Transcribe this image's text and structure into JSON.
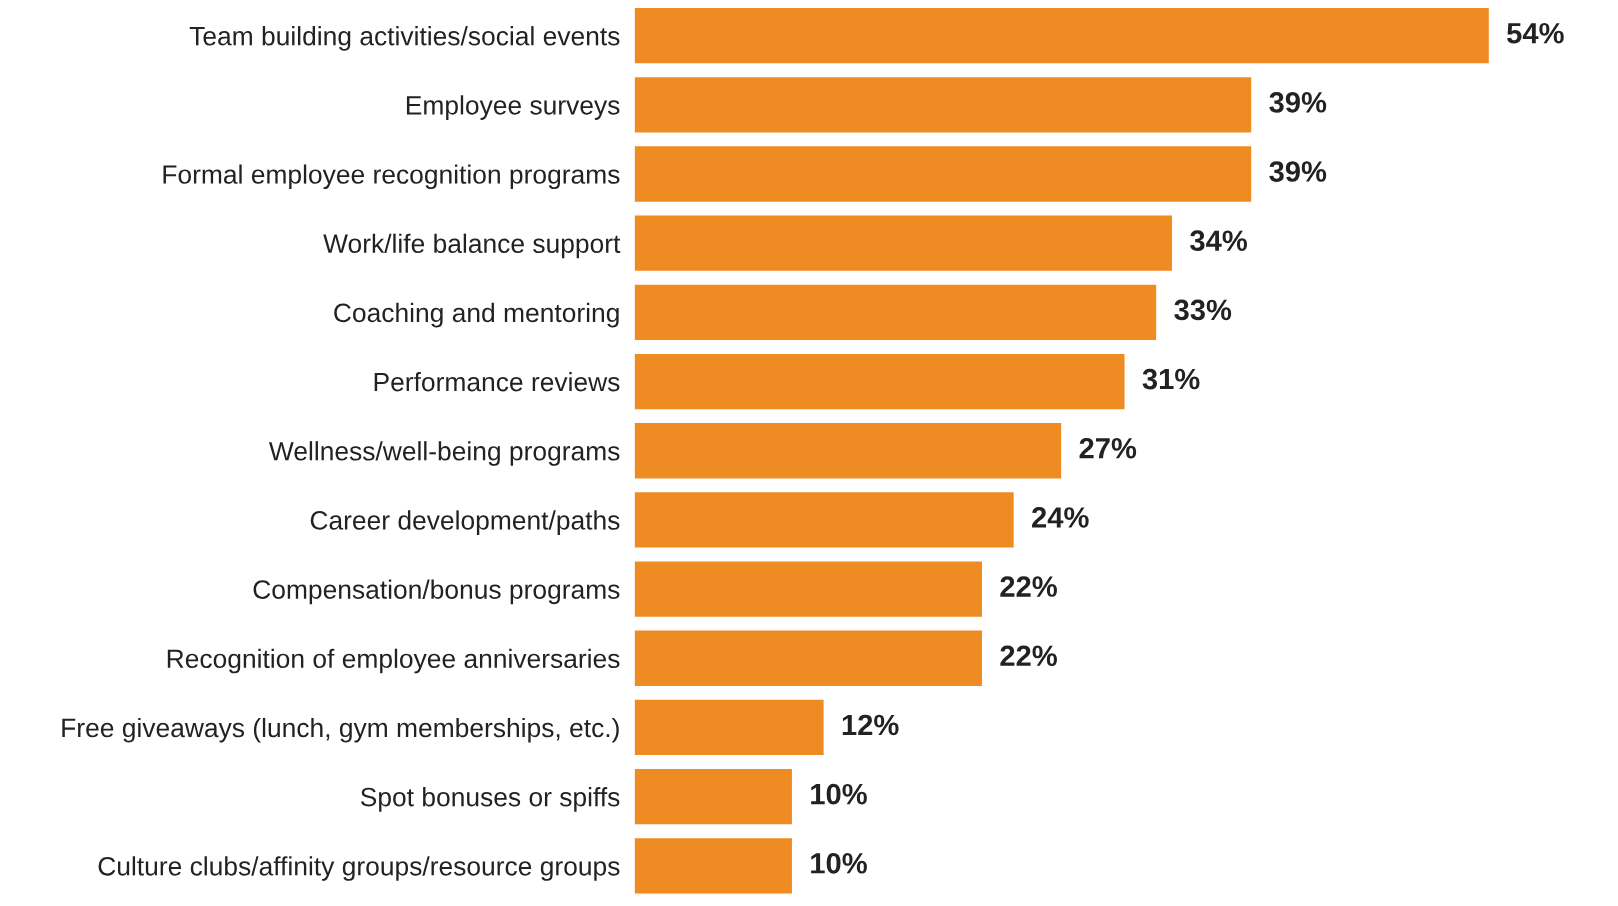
{
  "chart_data": {
    "type": "bar",
    "orientation": "horizontal",
    "categories": [
      "Team building activities/social events",
      "Employee surveys",
      "Formal employee recognition programs",
      "Work/life balance support",
      "Coaching and mentoring",
      "Performance reviews",
      "Wellness/well-being programs",
      "Career development/paths",
      "Compensation/bonus programs",
      "Recognition of employee anniversaries",
      "Free giveaways (lunch, gym memberships, etc.)",
      "Spot bonuses or spiffs",
      "Culture clubs/affinity groups/resource groups"
    ],
    "values": [
      54,
      39,
      39,
      34,
      33,
      31,
      27,
      24,
      22,
      22,
      12,
      10,
      10
    ],
    "value_labels": [
      "54%",
      "39%",
      "39%",
      "34%",
      "33%",
      "31%",
      "27%",
      "24%",
      "22%",
      "22%",
      "12%",
      "10%",
      "10%"
    ],
    "color": "#ee8b23"
  }
}
